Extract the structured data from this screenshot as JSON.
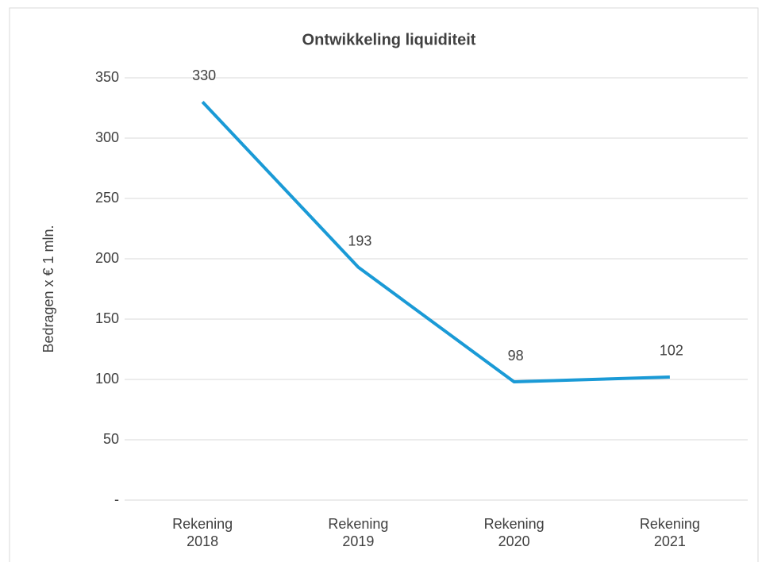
{
  "chart_data": {
    "type": "line",
    "title": "Ontwikkeling liquiditeit",
    "y_label": "Bedragen x € 1 mln.",
    "categories": [
      "Rekening 2018",
      "Rekening 2019",
      "Rekening 2020",
      "Rekening 2021"
    ],
    "values": [
      330,
      193,
      98,
      102
    ],
    "color": "#1a9ad6",
    "ylim": [
      0,
      350
    ],
    "yticks": [
      {
        "value": 0,
        "label": "-"
      },
      50,
      100,
      150,
      200,
      250,
      300,
      350
    ],
    "grid": true
  }
}
